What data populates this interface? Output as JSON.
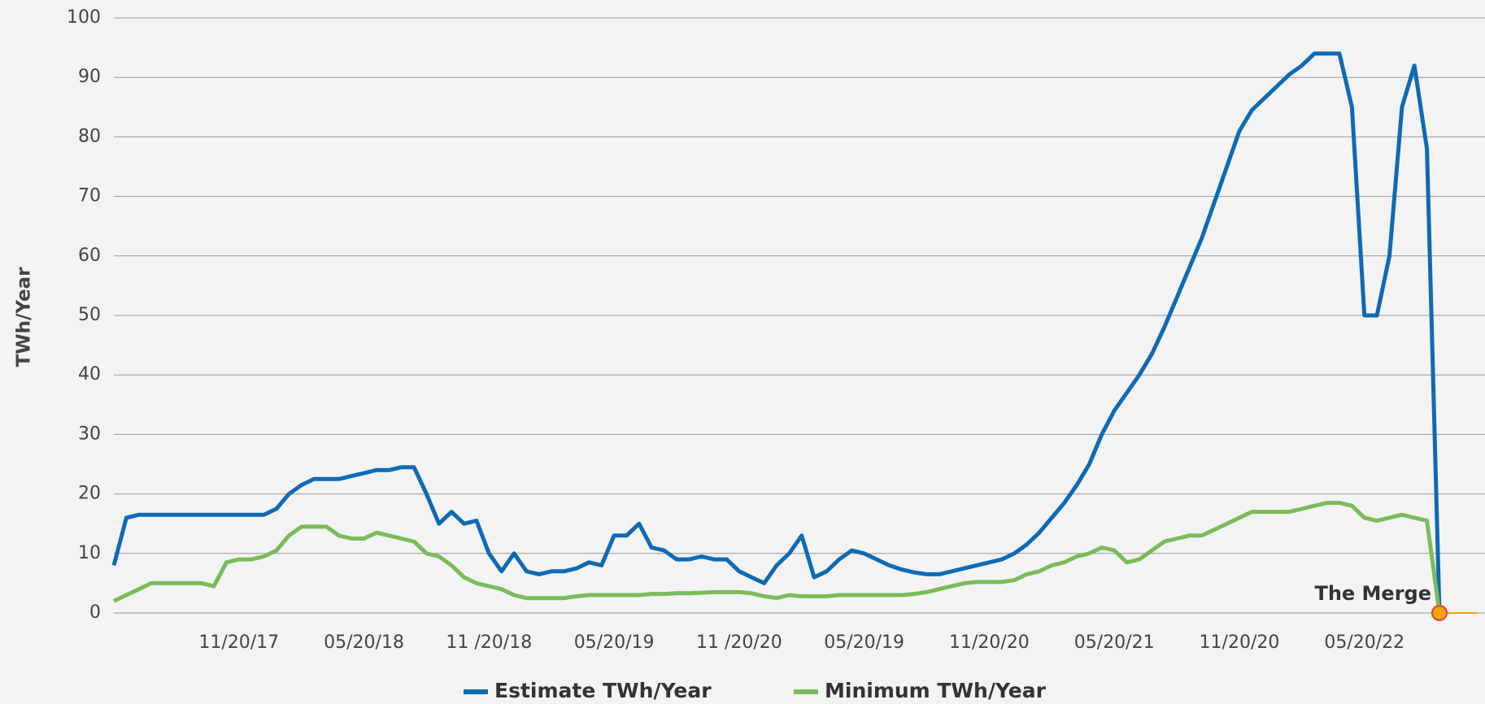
{
  "chart_data": {
    "type": "line",
    "ylabel": "TWh/Year",
    "categories": [
      null,
      null,
      null,
      null,
      null,
      null,
      null,
      null,
      null,
      null,
      "11/20/17",
      null,
      null,
      null,
      null,
      null,
      null,
      null,
      null,
      null,
      "05/20/18",
      null,
      null,
      null,
      null,
      null,
      null,
      null,
      null,
      null,
      "11 /20/18",
      null,
      null,
      null,
      null,
      null,
      null,
      null,
      null,
      null,
      "05/20/19",
      null,
      null,
      null,
      null,
      null,
      null,
      null,
      null,
      null,
      "11 /20/20",
      null,
      null,
      null,
      null,
      null,
      null,
      null,
      null,
      null,
      "05/20/19",
      null,
      null,
      null,
      null,
      null,
      null,
      null,
      null,
      null,
      "11/20/20",
      null,
      null,
      null,
      null,
      null,
      null,
      null,
      null,
      null,
      "05/20/21",
      null,
      null,
      null,
      null,
      null,
      null,
      null,
      null,
      null,
      "11/20/20",
      null,
      null,
      null,
      null,
      null,
      null,
      null,
      null,
      null,
      "05/20/22",
      null,
      null,
      null,
      null,
      null,
      null
    ],
    "series": [
      {
        "name": "Estimate TWh/Year",
        "color": "#0e6ab5",
        "values": [
          8,
          16,
          16.5,
          16.5,
          16.5,
          16.5,
          16.5,
          16.5,
          16.5,
          16.5,
          16.5,
          16.5,
          16.5,
          17.5,
          20,
          21.5,
          22.5,
          22.5,
          22.5,
          23,
          23.5,
          24,
          24,
          24.5,
          24.5,
          20,
          15,
          17,
          15,
          15.5,
          10,
          7,
          10,
          7,
          6.5,
          7,
          7,
          7.5,
          8.5,
          8,
          13,
          13,
          15,
          11,
          10.5,
          9,
          9,
          9.5,
          9,
          9,
          7,
          6,
          5,
          8,
          10,
          13,
          6,
          7,
          9,
          10.5,
          10,
          9,
          8,
          7.3,
          6.8,
          6.5,
          6.5,
          7,
          7.5,
          8,
          8.5,
          9,
          10,
          11.5,
          13.5,
          16,
          18.5,
          21.5,
          25,
          30,
          34,
          37,
          40,
          43.5,
          48,
          53,
          58,
          63,
          69,
          75,
          81,
          84.5,
          86.5,
          88.5,
          90.5,
          92,
          94,
          94,
          94,
          85,
          50,
          50,
          60,
          85,
          92,
          78,
          0
        ]
      },
      {
        "name": "Minimum TWh/Year",
        "color": "#7bbb5a",
        "values": [
          2,
          3,
          4,
          5,
          5,
          5,
          5,
          5,
          4.5,
          8.5,
          9,
          9,
          9.5,
          10.5,
          13,
          14.5,
          14.5,
          14.5,
          13,
          12.5,
          12.5,
          13.5,
          13,
          12.5,
          12,
          10,
          9.5,
          8,
          6,
          5,
          4.5,
          4,
          3,
          2.5,
          2.5,
          2.5,
          2.5,
          2.8,
          3,
          3,
          3,
          3,
          3,
          3.2,
          3.2,
          3.3,
          3.3,
          3.4,
          3.5,
          3.5,
          3.5,
          3.3,
          2.8,
          2.5,
          3,
          2.8,
          2.8,
          2.8,
          3,
          3,
          3,
          3,
          3,
          3,
          3.2,
          3.5,
          4,
          4.5,
          5,
          5.2,
          5.2,
          5.2,
          5.5,
          6.5,
          7,
          8,
          8.5,
          9.5,
          10,
          11,
          10.5,
          8.5,
          9,
          10.5,
          12,
          12.5,
          13,
          13,
          14,
          15,
          16,
          17,
          17,
          17,
          17,
          17.5,
          18,
          18.5,
          18.5,
          18,
          16,
          15.5,
          16,
          16.5,
          16,
          15.5,
          0
        ]
      }
    ],
    "ylim": [
      0,
      100
    ],
    "yticks": [
      0,
      10,
      20,
      30,
      40,
      50,
      60,
      70,
      80,
      90,
      100
    ],
    "grid": true,
    "annotations": [
      {
        "text": "The Merge",
        "color": "#f5a300"
      }
    ],
    "legend": "bottom"
  }
}
